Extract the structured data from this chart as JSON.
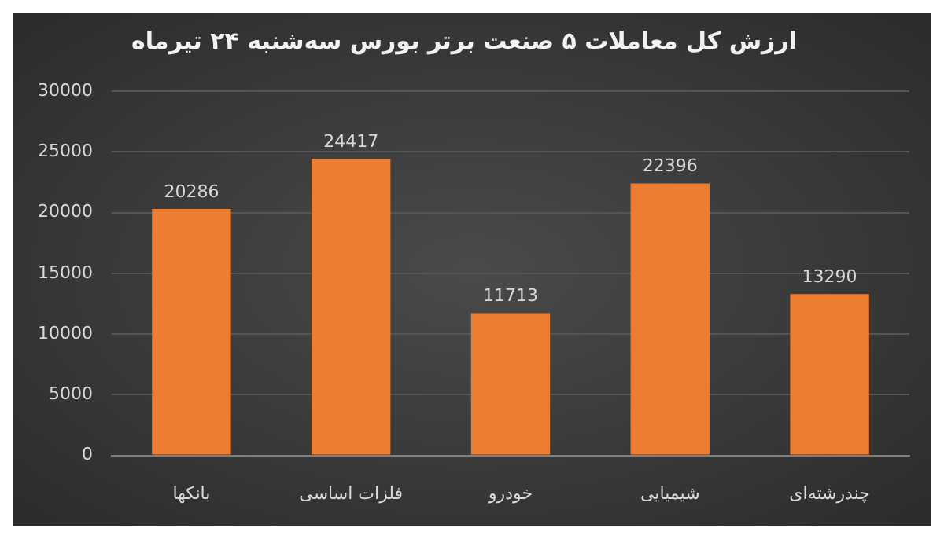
{
  "chart_data": {
    "type": "bar",
    "title": "ارزش کل معاملات ۵ صنعت برتر بورس سه‌شنبه ۲۴ تیرماه",
    "categories": [
      "بانکها",
      "فلزات اساسی",
      "خودرو",
      "شیمیایی",
      "چندرشته‌ای"
    ],
    "values": [
      20286,
      24417,
      11713,
      22396,
      13290
    ],
    "color": "#ed7d31",
    "ylim": [
      0,
      30000
    ],
    "yticks": [
      0,
      5000,
      10000,
      15000,
      20000,
      25000,
      30000
    ],
    "grid": "y",
    "data_labels": true,
    "legend": false
  }
}
